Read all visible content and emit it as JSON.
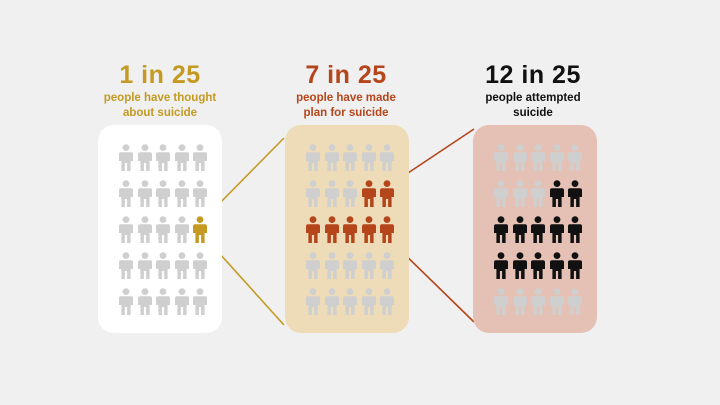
{
  "stats": [
    {
      "big": "1 in 25",
      "line1": "people have thought",
      "line2": "about suicide",
      "count": 1,
      "color": "#c49a22"
    },
    {
      "big": "7 in 25",
      "line1": "people have made",
      "line2": "plan for suicide",
      "count": 7,
      "color": "#b5451b"
    },
    {
      "big": "12 in 25",
      "line1": "people attempted",
      "line2": "suicide",
      "count": 12,
      "color": "#111111"
    }
  ],
  "panels": [
    {
      "background": "#ffffff",
      "highlighted": [
        [
          2,
          4
        ]
      ]
    },
    {
      "background": "#eddcb7",
      "highlighted": [
        [
          1,
          3
        ],
        [
          1,
          4
        ],
        [
          2,
          0
        ],
        [
          2,
          1
        ],
        [
          2,
          2
        ],
        [
          2,
          3
        ],
        [
          2,
          4
        ]
      ]
    },
    {
      "background": "#e5c0b5",
      "highlighted": [
        [
          1,
          3
        ],
        [
          1,
          4
        ],
        [
          2,
          0
        ],
        [
          2,
          1
        ],
        [
          2,
          2
        ],
        [
          2,
          3
        ],
        [
          2,
          4
        ],
        [
          3,
          0
        ],
        [
          3,
          1
        ],
        [
          3,
          2
        ],
        [
          3,
          3
        ],
        [
          3,
          4
        ]
      ]
    }
  ],
  "grid": {
    "rows": 5,
    "cols": 5,
    "total": 25
  },
  "colors": {
    "inactive_person": "#cfcfcf"
  },
  "icon": "person-icon"
}
